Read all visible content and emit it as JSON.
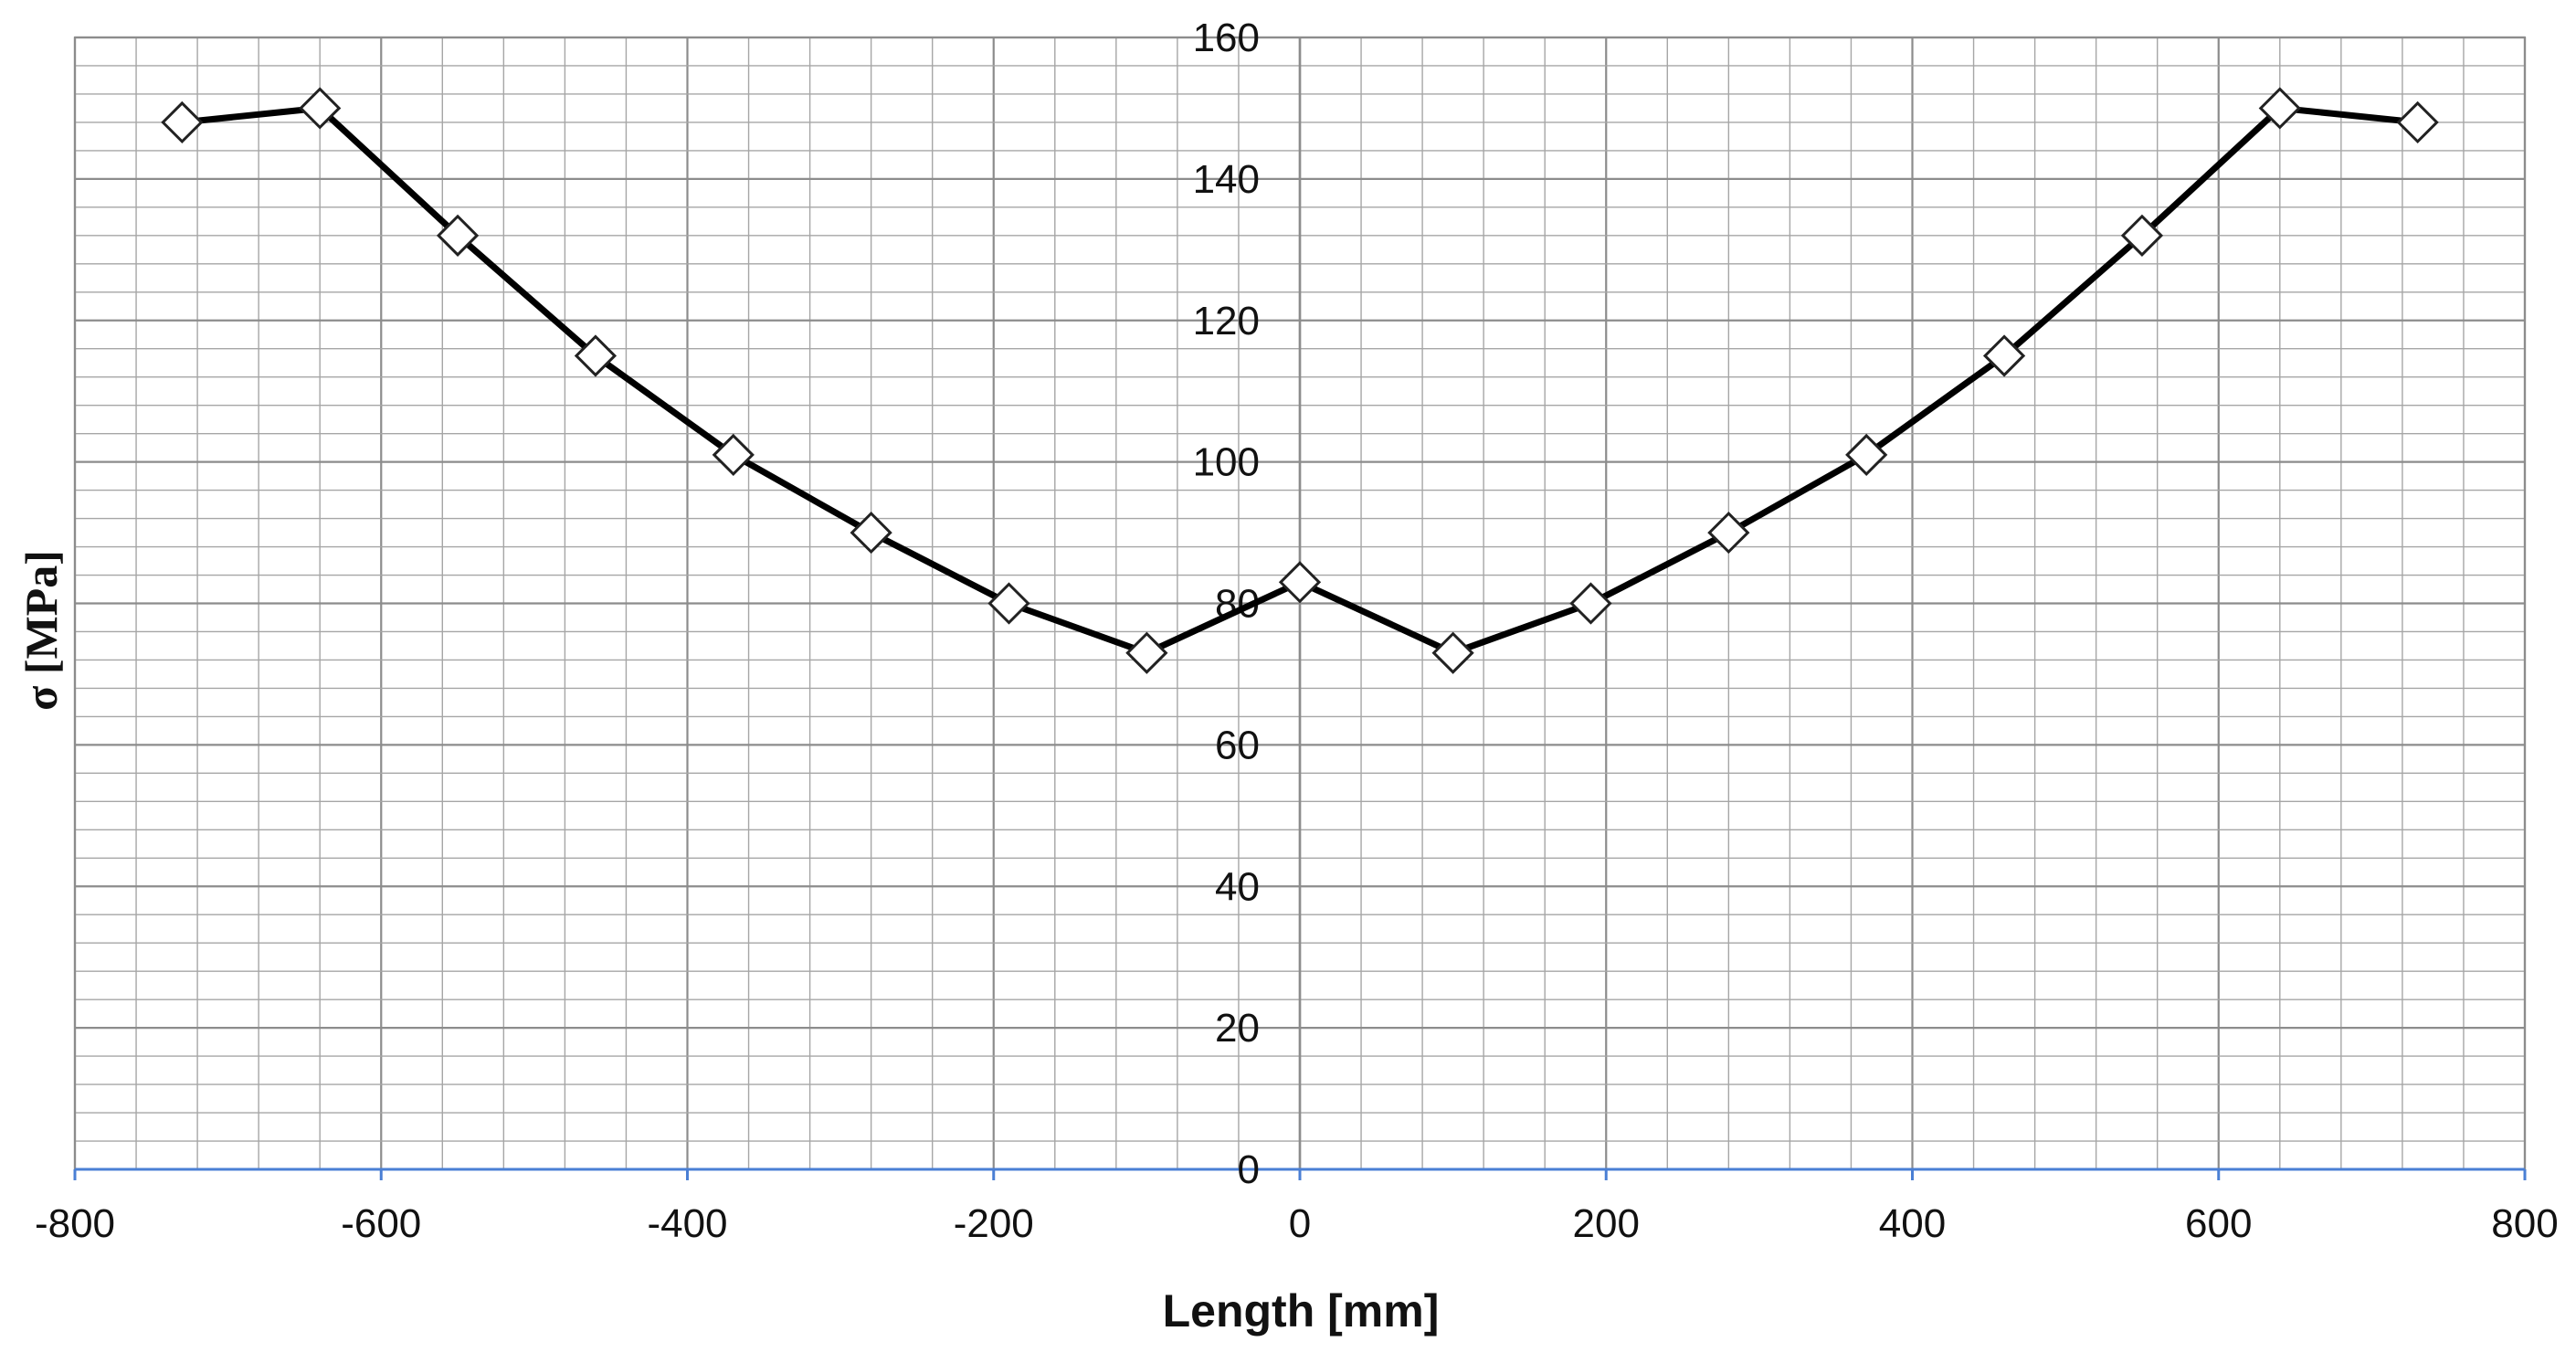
{
  "chart_data": {
    "type": "line",
    "title": "",
    "xlabel": "Length [mm]",
    "ylabel": "σ [MPa]",
    "xlim": [
      -800,
      800
    ],
    "ylim": [
      0,
      160
    ],
    "x_ticks": [
      -800,
      -600,
      -400,
      -200,
      0,
      200,
      400,
      600,
      800
    ],
    "y_ticks": [
      0,
      20,
      40,
      60,
      80,
      100,
      120,
      140,
      160
    ],
    "x_tick_labels": [
      "-800",
      "-600",
      "-400",
      "-200",
      "0",
      "200",
      "400",
      "600",
      "800"
    ],
    "y_tick_labels": [
      "0",
      "20",
      "40",
      "60",
      "80",
      "100",
      "120",
      "140",
      "160"
    ],
    "grid": true,
    "legend": "none",
    "marker": "open-diamond",
    "line_color": "#000000",
    "grid_color": "#a6a6a6",
    "axis_color": "#4a7fd4",
    "series": [
      {
        "x": [
          -730,
          -640,
          -550,
          -460,
          -370,
          -280,
          -190,
          -100,
          0,
          100,
          190,
          280,
          370,
          460,
          550,
          640,
          730
        ],
        "values": [
          148,
          150,
          132,
          115,
          101,
          90,
          80,
          73,
          83,
          73,
          80,
          90,
          101,
          115,
          132,
          150,
          148
        ]
      }
    ]
  }
}
